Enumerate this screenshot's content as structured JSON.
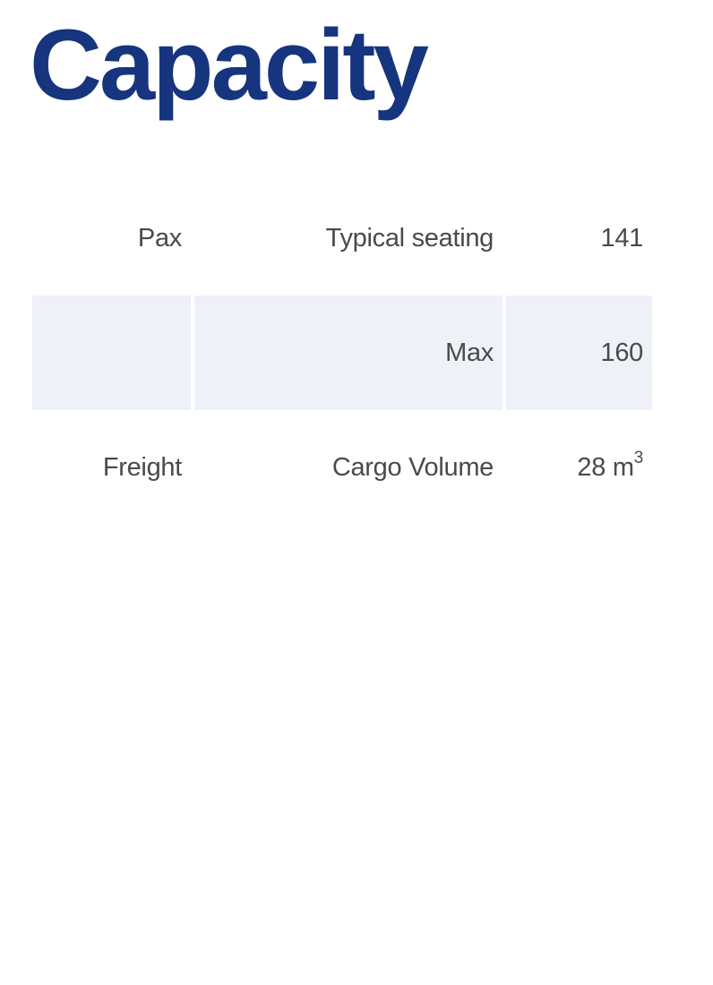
{
  "title": "Capacity",
  "table": {
    "rows": [
      {
        "category": "Pax",
        "attribute": "Typical seating",
        "value": "141",
        "unit": "",
        "unit_superscript": ""
      },
      {
        "category": "",
        "attribute": "Max",
        "value": "160",
        "unit": "",
        "unit_superscript": ""
      },
      {
        "category": "Freight",
        "attribute": "Cargo Volume",
        "value": "28",
        "unit": "m",
        "unit_superscript": "3"
      }
    ]
  },
  "colors": {
    "title": "#17347f",
    "text": "#4a4a4a",
    "shaded_row": "#eef1f8"
  }
}
